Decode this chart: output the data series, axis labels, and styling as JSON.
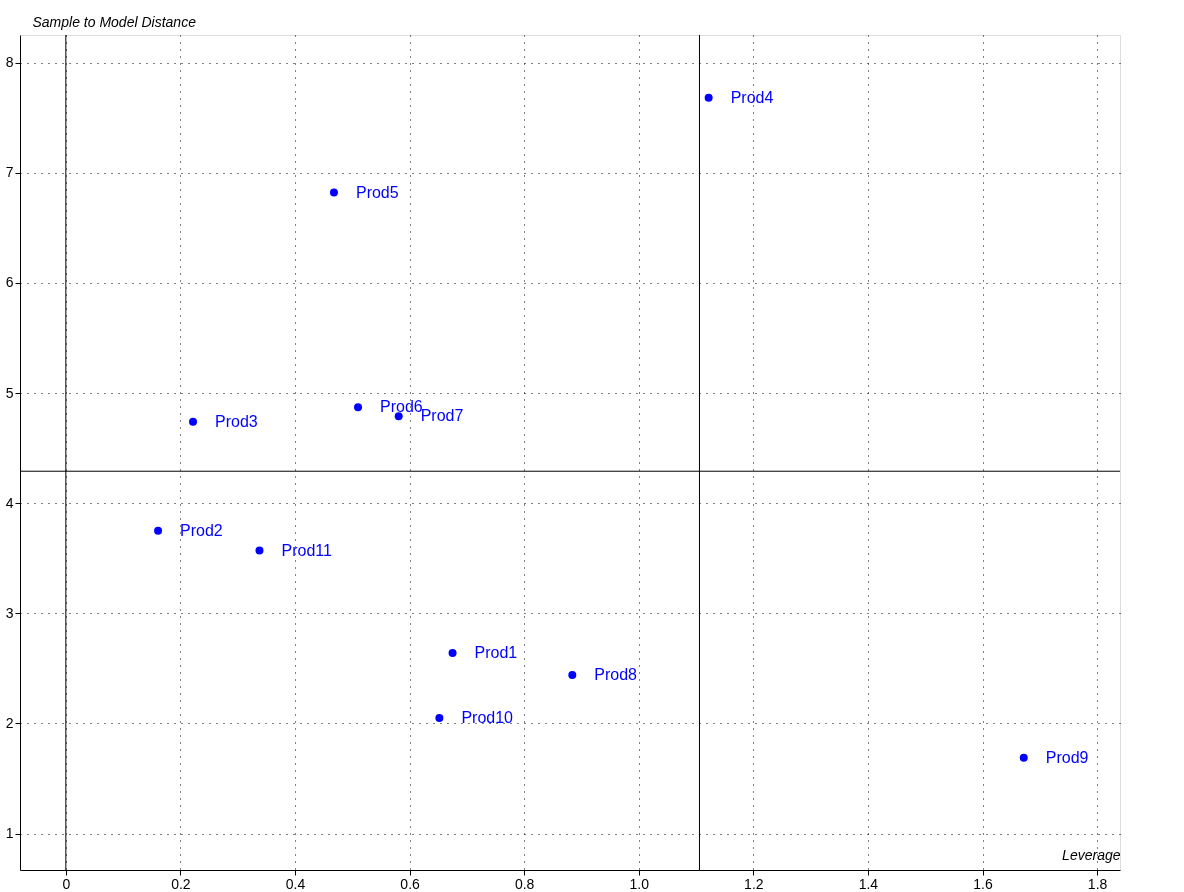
{
  "chart_data": {
    "type": "scatter",
    "xlabel": "Leverage",
    "ylabel": "Sample to Model Distance",
    "series": [
      {
        "color": "#0000ff",
        "x": [
          0.675,
          0.161,
          0.222,
          1.122,
          0.468,
          0.51,
          0.581,
          0.884,
          1.672,
          0.652,
          0.338
        ],
        "values": [
          2.64,
          3.75,
          4.74,
          7.68,
          6.82,
          4.87,
          4.79,
          2.44,
          1.69,
          2.05,
          3.57
        ],
        "value_labels": [
          "Prod1",
          "Prod2",
          "Prod3",
          "Prod4",
          "Prod5",
          "Prod6",
          "Prod7",
          "Prod8",
          "Prod9",
          "Prod10",
          "Prod11"
        ]
      }
    ],
    "xlim": [
      -0.08,
      1.84
    ],
    "ylim": [
      0.67,
      8.25
    ],
    "xticks": [
      0,
      0.2,
      0.4,
      0.6,
      0.8,
      {
        "value": 1,
        "label": "1.0"
      },
      1.2,
      1.4,
      1.6,
      1.8
    ],
    "yticks": [
      1,
      2,
      3,
      4,
      5,
      6,
      7,
      8
    ],
    "ref_lines": [
      {
        "axis": "x",
        "value": 0,
        "color": "#000000"
      },
      {
        "axis": "x",
        "value": 1.106,
        "color": "#000000"
      },
      {
        "axis": "y",
        "value": 4.29,
        "color": "#000000"
      }
    ],
    "grid": true,
    "marker": "circle"
  }
}
